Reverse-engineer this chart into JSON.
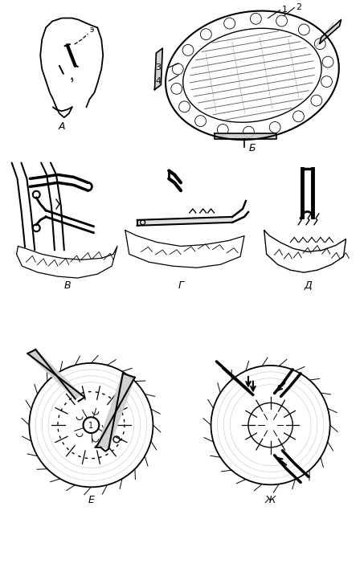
{
  "title": "",
  "background_color": "#ffffff",
  "panel_labels": [
    "А",
    "Б",
    "В",
    "Г",
    "Д",
    "Е",
    "Ж"
  ],
  "numbers": [
    "1",
    "2",
    "3",
    "4"
  ],
  "fig_width": 4.53,
  "fig_height": 7.12,
  "dpi": 100
}
